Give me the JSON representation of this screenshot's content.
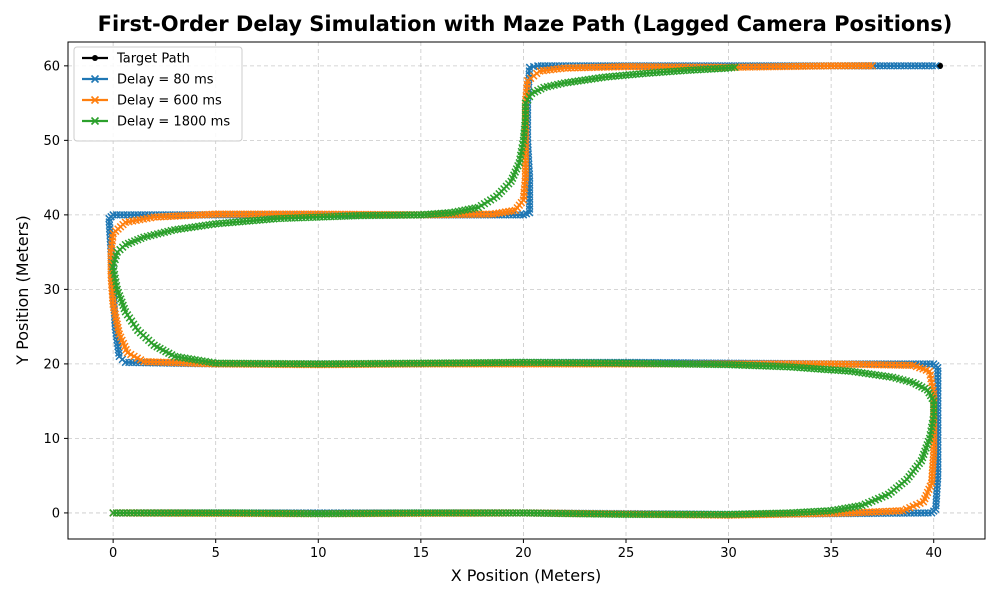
{
  "chart_data": {
    "type": "line",
    "title": "First-Order Delay Simulation with Maze Path (Lagged Camera Positions)",
    "xlabel": "X Position (Meters)",
    "ylabel": "Y Position (Meters)",
    "xlim": [
      -2.2,
      42.5
    ],
    "ylim": [
      -3.5,
      63.2
    ],
    "xticks": [
      0,
      5,
      10,
      15,
      20,
      25,
      30,
      35,
      40
    ],
    "yticks": [
      0,
      10,
      20,
      30,
      40,
      50,
      60
    ],
    "grid": true,
    "legend_position": "top-left",
    "series": [
      {
        "name": "Target Path",
        "color": "#000000",
        "marker": "dot",
        "points": [
          [
            40.3,
            60.0
          ]
        ]
      },
      {
        "name": "Delay = 80 ms",
        "color": "#1f77b4",
        "marker": "x",
        "points": [
          [
            0,
            0
          ],
          [
            10,
            0
          ],
          [
            20,
            0
          ],
          [
            30,
            -0.2
          ],
          [
            39.9,
            0
          ],
          [
            40.1,
            0.5
          ],
          [
            40.2,
            5
          ],
          [
            40.2,
            10
          ],
          [
            40.2,
            15
          ],
          [
            40.2,
            19.5
          ],
          [
            40.0,
            20.0
          ],
          [
            35,
            20.0
          ],
          [
            30,
            20.1
          ],
          [
            25,
            20.2
          ],
          [
            20,
            20.2
          ],
          [
            15,
            20.0
          ],
          [
            10,
            20.0
          ],
          [
            5,
            20.0
          ],
          [
            0.6,
            20.2
          ],
          [
            0.3,
            21
          ],
          [
            0.1,
            25
          ],
          [
            0,
            30
          ],
          [
            -0.1,
            35
          ],
          [
            -0.2,
            39.5
          ],
          [
            0,
            40
          ],
          [
            5,
            40
          ],
          [
            10,
            40
          ],
          [
            15,
            40
          ],
          [
            20.0,
            40
          ],
          [
            20.3,
            40.3
          ],
          [
            20.3,
            45
          ],
          [
            20.2,
            50
          ],
          [
            20.2,
            55
          ],
          [
            20.3,
            59.8
          ],
          [
            20.7,
            60
          ],
          [
            25,
            60
          ],
          [
            30,
            60
          ],
          [
            35,
            60
          ],
          [
            40.1,
            60
          ]
        ]
      },
      {
        "name": "Delay = 600 ms",
        "color": "#ff7f0e",
        "marker": "x",
        "points": [
          [
            0,
            0
          ],
          [
            10,
            -0.1
          ],
          [
            20,
            0
          ],
          [
            30,
            -0.3
          ],
          [
            36,
            0
          ],
          [
            38.5,
            0.3
          ],
          [
            39.5,
            1.5
          ],
          [
            39.9,
            4
          ],
          [
            40.0,
            8
          ],
          [
            40.0,
            12
          ],
          [
            40.0,
            16
          ],
          [
            39.8,
            19
          ],
          [
            39,
            19.8
          ],
          [
            35,
            20.0
          ],
          [
            30,
            20.0
          ],
          [
            25,
            20.0
          ],
          [
            20,
            20.0
          ],
          [
            15,
            20.0
          ],
          [
            10,
            19.9
          ],
          [
            5,
            20.0
          ],
          [
            1.5,
            20.3
          ],
          [
            0.7,
            21.5
          ],
          [
            0.3,
            24
          ],
          [
            0,
            28
          ],
          [
            -0.1,
            32
          ],
          [
            -0.1,
            35
          ],
          [
            0,
            37.5
          ],
          [
            0.6,
            39
          ],
          [
            2,
            39.7
          ],
          [
            5,
            40.1
          ],
          [
            10,
            40.1
          ],
          [
            15,
            40.0
          ],
          [
            18.5,
            40.1
          ],
          [
            19.6,
            40.6
          ],
          [
            20.0,
            42
          ],
          [
            20.1,
            45
          ],
          [
            20.1,
            50
          ],
          [
            20.1,
            55
          ],
          [
            20.2,
            58
          ],
          [
            20.8,
            59.3
          ],
          [
            22,
            59.7
          ],
          [
            25,
            59.9
          ],
          [
            30,
            59.8
          ],
          [
            35,
            60.0
          ],
          [
            37,
            60.0
          ]
        ]
      },
      {
        "name": "Delay = 1800 ms",
        "color": "#2ca02c",
        "marker": "x",
        "points": [
          [
            0,
            0
          ],
          [
            2,
            0
          ],
          [
            4,
            0
          ],
          [
            6,
            0
          ],
          [
            10,
            -0.1
          ],
          [
            15,
            0
          ],
          [
            20,
            0
          ],
          [
            25,
            -0.2
          ],
          [
            30,
            -0.2
          ],
          [
            33,
            0
          ],
          [
            35,
            0.3
          ],
          [
            36.5,
            1
          ],
          [
            37.8,
            2.5
          ],
          [
            38.7,
            4.5
          ],
          [
            39.4,
            7
          ],
          [
            39.8,
            10
          ],
          [
            40.0,
            13
          ],
          [
            40.0,
            15
          ],
          [
            39.7,
            16.5
          ],
          [
            39,
            17.5
          ],
          [
            38,
            18.2
          ],
          [
            36,
            19
          ],
          [
            33,
            19.6
          ],
          [
            30,
            19.9
          ],
          [
            25,
            20.1
          ],
          [
            20,
            20.2
          ],
          [
            15,
            20.1
          ],
          [
            10,
            20.0
          ],
          [
            5,
            20.1
          ],
          [
            3,
            21
          ],
          [
            2,
            22.5
          ],
          [
            1.2,
            24.5
          ],
          [
            0.6,
            27
          ],
          [
            0.2,
            30
          ],
          [
            0,
            33
          ],
          [
            0.2,
            35
          ],
          [
            0.6,
            36
          ],
          [
            1.5,
            37
          ],
          [
            3,
            38
          ],
          [
            5,
            38.8
          ],
          [
            8,
            39.5
          ],
          [
            12,
            39.9
          ],
          [
            15,
            40.0
          ],
          [
            16.5,
            40.3
          ],
          [
            17.8,
            41
          ],
          [
            18.7,
            42.5
          ],
          [
            19.4,
            44.5
          ],
          [
            19.8,
            47
          ],
          [
            20.0,
            50
          ],
          [
            20.1,
            53
          ],
          [
            20.1,
            55
          ],
          [
            20.4,
            56.3
          ],
          [
            21,
            57.1
          ],
          [
            22,
            57.7
          ],
          [
            24,
            58.5
          ],
          [
            26,
            59.0
          ],
          [
            28,
            59.4
          ],
          [
            30,
            59.7
          ],
          [
            30.3,
            59.8
          ]
        ]
      }
    ]
  }
}
